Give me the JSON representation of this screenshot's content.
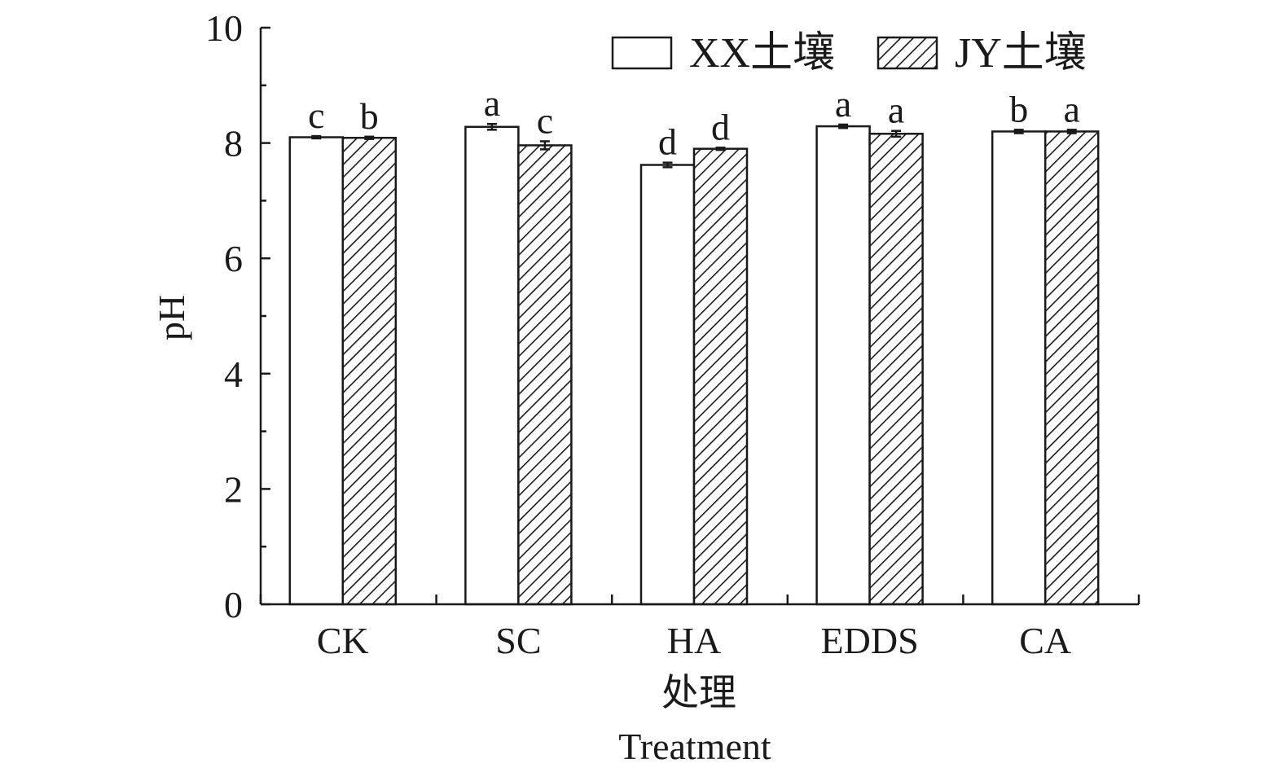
{
  "chart_data": {
    "type": "bar",
    "categories": [
      "CK",
      "SC",
      "HA",
      "EDDS",
      "CA"
    ],
    "series": [
      {
        "name": "XX土壤",
        "values": [
          8.1,
          8.28,
          7.62,
          8.29,
          8.2
        ],
        "errors": [
          0.02,
          0.05,
          0.04,
          0.03,
          0.03
        ],
        "significance": [
          "c",
          "a",
          "d",
          "a",
          "b"
        ],
        "pattern": "none"
      },
      {
        "name": "JY土壤",
        "values": [
          8.09,
          7.96,
          7.9,
          8.16,
          8.2
        ],
        "errors": [
          0.02,
          0.07,
          0.02,
          0.05,
          0.03
        ],
        "significance": [
          "b",
          "c",
          "d",
          "a",
          "a"
        ],
        "pattern": "hatched"
      }
    ],
    "ylabel": "pH",
    "xlabel_cn": "处理",
    "xlabel_en": "Treatment",
    "ylim": [
      0,
      10
    ],
    "yticks": [
      0,
      2,
      4,
      6,
      8,
      10
    ],
    "y_minor_step": 1,
    "grid": false,
    "legend_position": "top-right",
    "colors": {
      "axis": "#1a1a1a",
      "bar_fill": "#ffffff",
      "hatch": "#1a1a1a"
    }
  }
}
